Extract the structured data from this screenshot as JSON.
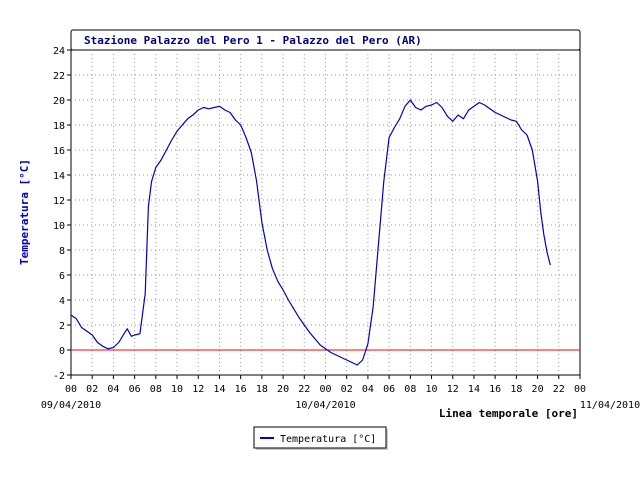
{
  "chart_data": {
    "type": "line",
    "title": "Stazione Palazzo del Pero 1 - Palazzo del Pero (AR)",
    "ylabel": "Temperatura [°C]",
    "xlabel": "Linea temporale [ore]",
    "ylim": [
      -2,
      24
    ],
    "yticks": [
      -2,
      0,
      2,
      4,
      6,
      8,
      10,
      12,
      14,
      16,
      18,
      20,
      22,
      24
    ],
    "xlim": [
      0,
      48
    ],
    "xtick_labels": [
      "00",
      "02",
      "04",
      "06",
      "08",
      "10",
      "12",
      "14",
      "16",
      "18",
      "20",
      "22",
      "00",
      "02",
      "04",
      "06",
      "08",
      "10",
      "12",
      "14",
      "16",
      "18",
      "20",
      "22",
      "00"
    ],
    "date_labels": [
      {
        "hour": 0,
        "text": "09/04/2010"
      },
      {
        "hour": 24,
        "text": "10/04/2010"
      },
      {
        "hour": 48,
        "text": "11/04/2010"
      }
    ],
    "grid": true,
    "reference_line": {
      "y": 0,
      "color": "#ff0000"
    },
    "legend_position": "bottom-center",
    "series": [
      {
        "name": "Temperatura [°C]",
        "color": "#0000cc",
        "x": [
          0.0,
          0.5,
          1.0,
          1.5,
          2.0,
          2.5,
          3.0,
          3.5,
          4.0,
          4.5,
          5.0,
          5.3,
          5.7,
          6.0,
          6.5,
          7.0,
          7.3,
          7.6,
          8.0,
          8.5,
          9.0,
          9.5,
          10.0,
          10.5,
          11.0,
          11.5,
          12.0,
          12.5,
          13.0,
          13.5,
          14.0,
          14.5,
          15.0,
          15.5,
          16.0,
          16.5,
          17.0,
          17.5,
          18.0,
          18.5,
          19.0,
          19.5,
          20.0,
          20.5,
          21.0,
          21.5,
          22.0,
          22.5,
          23.0,
          23.5,
          24.0,
          24.5,
          25.0,
          25.5,
          26.0,
          26.5,
          27.0,
          27.5,
          28.0,
          28.5,
          29.0,
          29.5,
          30.0,
          30.5,
          31.0,
          31.5,
          32.0,
          32.5,
          33.0,
          33.5,
          34.0,
          34.5,
          35.0,
          35.5,
          36.0,
          36.5,
          37.0,
          37.5,
          38.0,
          38.5,
          39.0,
          39.5,
          40.0,
          40.5,
          41.0,
          41.5,
          42.0,
          42.5,
          43.0,
          43.5,
          44.0,
          44.3,
          44.6,
          44.9,
          45.2
        ],
        "values": [
          2.8,
          2.5,
          1.8,
          1.5,
          1.2,
          0.6,
          0.3,
          0.1,
          0.2,
          0.6,
          1.3,
          1.7,
          1.1,
          1.2,
          1.3,
          4.5,
          11.5,
          13.5,
          14.6,
          15.2,
          16.0,
          16.8,
          17.5,
          18.0,
          18.5,
          18.8,
          19.2,
          19.4,
          19.3,
          19.4,
          19.5,
          19.2,
          19.0,
          18.4,
          18.0,
          17.0,
          15.8,
          13.5,
          10.2,
          8.0,
          6.5,
          5.5,
          4.8,
          4.0,
          3.3,
          2.6,
          2.0,
          1.4,
          0.9,
          0.4,
          0.1,
          -0.2,
          -0.4,
          -0.6,
          -0.8,
          -1.0,
          -1.2,
          -0.8,
          0.5,
          3.5,
          8.5,
          13.5,
          17.0,
          17.8,
          18.5,
          19.5,
          20.0,
          19.4,
          19.2,
          19.5,
          19.6,
          19.8,
          19.4,
          18.7,
          18.3,
          18.8,
          18.5,
          19.2,
          19.5,
          19.8,
          19.6,
          19.3,
          19.0,
          18.8,
          18.6,
          18.4,
          18.3,
          17.6,
          17.2,
          16.0,
          13.5,
          11.0,
          9.2,
          7.8,
          6.8
        ]
      }
    ]
  }
}
